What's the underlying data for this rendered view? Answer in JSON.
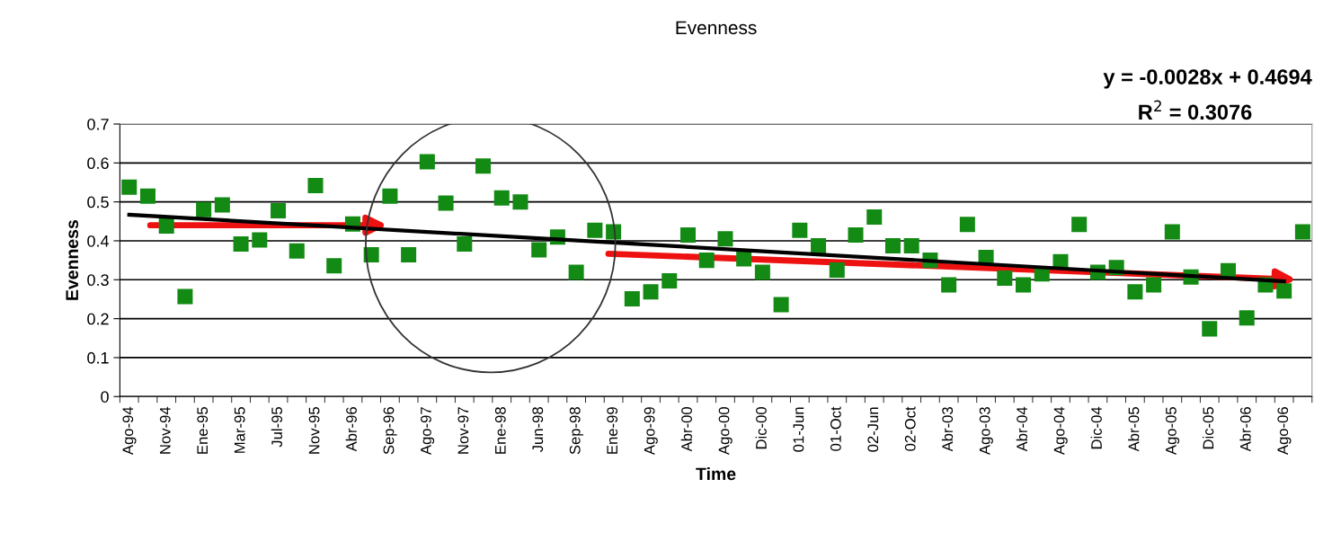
{
  "chart_data": {
    "type": "scatter",
    "title": "Evenness",
    "xlabel": "Time",
    "ylabel": "Evenness",
    "annotations": [
      "y = -0.0028x + 0.4694",
      "R$^{2}$ = 0.3076"
    ],
    "categories": [
      "Ago-94",
      null,
      "Nov-94",
      null,
      "Ene-95",
      null,
      "Mar-95",
      null,
      "Jul-95",
      null,
      "Nov-95",
      null,
      "Abr-96",
      null,
      "Sep-96",
      null,
      "Ago-97",
      null,
      "Nov-97",
      null,
      "Ene-98",
      null,
      "Jun-98",
      null,
      "Sep-98",
      null,
      "Ene-99",
      null,
      "Ago-99",
      null,
      "Abr-00",
      null,
      "Ago-00",
      null,
      "Dic-00",
      null,
      "01-Jun",
      null,
      "01-Oct",
      null,
      "02-Jun",
      null,
      "02-Oct",
      null,
      "Abr-03",
      null,
      "Ago-03",
      null,
      "Abr-04",
      null,
      "Ago-04",
      null,
      "Dic-04",
      null,
      "Abr-05",
      null,
      "Ago-05",
      null,
      "Dic-05",
      null,
      "Abr-06",
      null,
      "Ago-06",
      null
    ],
    "series": [
      {
        "color": "#138a13",
        "marker": "square",
        "values": [
          0.538,
          0.515,
          0.438,
          0.257,
          0.48,
          0.492,
          0.392,
          0.402,
          0.477,
          0.374,
          0.542,
          0.336,
          0.443,
          0.364,
          0.515,
          0.364,
          0.603,
          0.497,
          0.392,
          0.592,
          0.51,
          0.5,
          0.377,
          0.41,
          0.319,
          0.427,
          0.423,
          0.251,
          0.269,
          0.297,
          0.415,
          0.35,
          0.405,
          0.354,
          0.319,
          0.236,
          0.427,
          0.387,
          0.325,
          0.415,
          0.461,
          0.387,
          0.387,
          0.35,
          0.287,
          0.442,
          0.357,
          0.304,
          0.287,
          0.315,
          0.346,
          0.442,
          0.319,
          0.331,
          0.269,
          0.287,
          0.423,
          0.307,
          0.174,
          0.323,
          0.202,
          0.287,
          0.271,
          0.423
        ]
      },
      {
        "type": "line",
        "color": "#000000",
        "x": [
          "Ago-94",
          "Ago-06"
        ],
        "values": [
          0.467,
          0.296
        ]
      }
    ],
    "ylim": [
      0,
      0.7
    ],
    "yticks": [
      0,
      0.1,
      0.2,
      0.3,
      0.4,
      0.5,
      0.6,
      0.7
    ],
    "grid": "y"
  }
}
